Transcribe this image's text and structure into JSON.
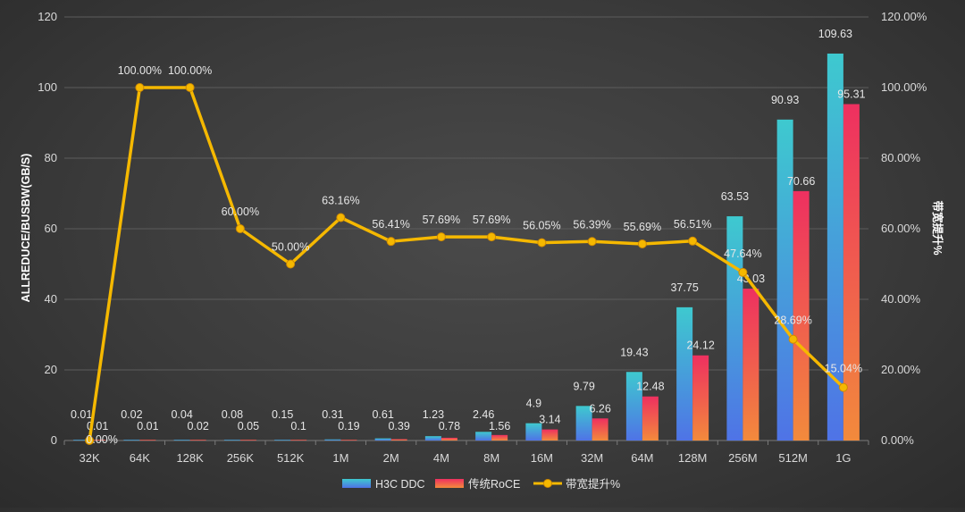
{
  "chart_data": {
    "type": "bar",
    "categories": [
      "32K",
      "64K",
      "128K",
      "256K",
      "512K",
      "1M",
      "2M",
      "4M",
      "8M",
      "16M",
      "32M",
      "64M",
      "128M",
      "256M",
      "512M",
      "1G"
    ],
    "series": [
      {
        "name": "H3C DDC",
        "type": "bar",
        "axis": "left",
        "color_top": "#3ec9cf",
        "color_bottom": "#4f73e6",
        "values": [
          0.01,
          0.02,
          0.04,
          0.08,
          0.15,
          0.31,
          0.61,
          1.23,
          2.46,
          4.9,
          9.79,
          19.43,
          37.75,
          63.53,
          90.93,
          109.63
        ],
        "labels": [
          "0.01",
          "0.02",
          "0.04",
          "0.08",
          "0.15",
          "0.31",
          "0.61",
          "1.23",
          "2.46",
          "4.9",
          "9.79",
          "19.43",
          "37.75",
          "63.53",
          "90.93",
          "109.63"
        ]
      },
      {
        "name": "传统RoCE",
        "type": "bar",
        "axis": "left",
        "color_top": "#ee3060",
        "color_bottom": "#f28a3c",
        "values": [
          0.01,
          0.01,
          0.02,
          0.05,
          0.1,
          0.19,
          0.39,
          0.78,
          1.56,
          3.14,
          6.26,
          12.48,
          24.12,
          43.03,
          70.66,
          95.31
        ],
        "labels": [
          "0.01",
          "0.01",
          "0.02",
          "0.05",
          "0.1",
          "0.19",
          "0.39",
          "0.78",
          "1.56",
          "3.14",
          "6.26",
          "12.48",
          "24.12",
          "43.03",
          "70.66",
          "95.31"
        ]
      },
      {
        "name": "带宽提升%",
        "type": "line",
        "axis": "right",
        "color": "#f5b800",
        "values": [
          0,
          100,
          100,
          60,
          50,
          63.16,
          56.41,
          57.69,
          57.69,
          56.05,
          56.39,
          55.69,
          56.51,
          47.64,
          28.69,
          15.04
        ],
        "labels": [
          "0.00%",
          "100.00%",
          "100.00%",
          "60.00%",
          "50.00%",
          "63.16%",
          "56.41%",
          "57.69%",
          "57.69%",
          "56.05%",
          "56.39%",
          "55.69%",
          "56.51%",
          "47.64%",
          "28.69%",
          "15.04%"
        ]
      }
    ],
    "ylabel": "ALLREDUCE/BUSBW(GB/S)",
    "y2label": "带宽提升%",
    "ylim": [
      0,
      120
    ],
    "y2lim": [
      0,
      120
    ],
    "yticks": [
      "0",
      "20",
      "40",
      "60",
      "80",
      "100",
      "120"
    ],
    "y2ticks": [
      "0.00%",
      "20.00%",
      "40.00%",
      "60.00%",
      "80.00%",
      "100.00%",
      "120.00%"
    ],
    "grid": true,
    "legend_position": "bottom"
  }
}
